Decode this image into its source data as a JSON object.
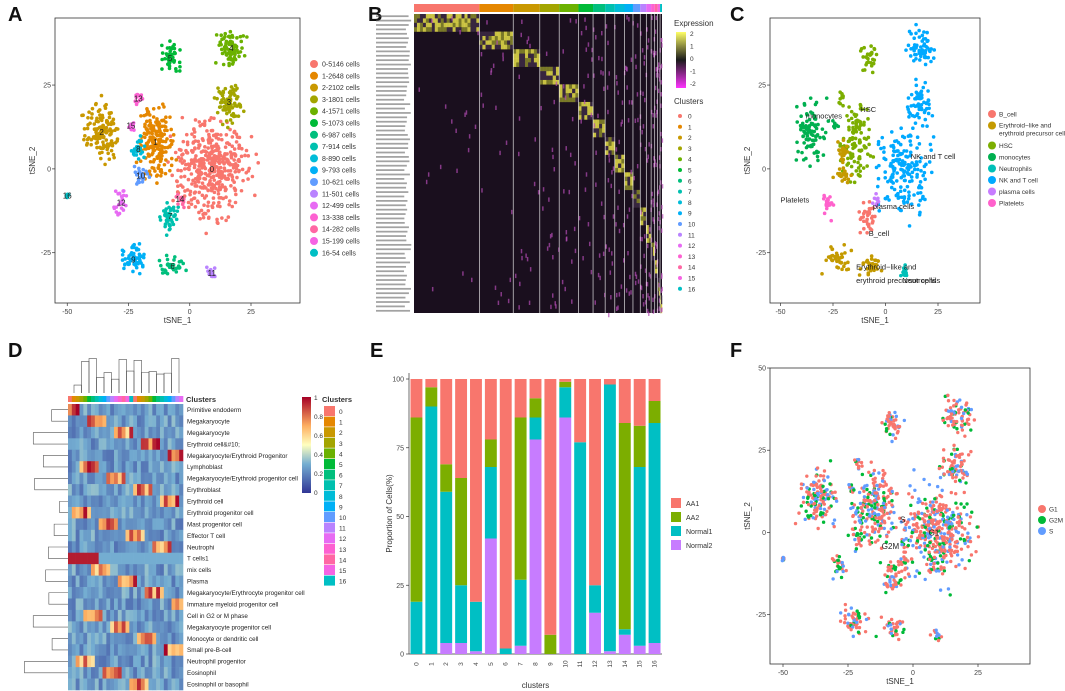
{
  "panels": {
    "A": "A",
    "B": "B",
    "C": "C",
    "D": "D",
    "E": "E",
    "F": "F"
  },
  "colors": [
    "#f8766d",
    "#e58700",
    "#c99800",
    "#a3a500",
    "#6bb100",
    "#00ba38",
    "#00bf7d",
    "#00c0af",
    "#00bcd8",
    "#00b0f6",
    "#619cff",
    "#b983ff",
    "#e76bf3",
    "#fd61d1",
    "#ff67a4",
    "#f564e3",
    "#00bfc4"
  ],
  "chart_data": [
    {
      "id": "A",
      "type": "scatter",
      "title": "",
      "xlabel": "tSNE_1",
      "ylabel": "tSNE_2",
      "xlim": [
        -55,
        45
      ],
      "ylim": [
        -40,
        45
      ],
      "xticks": [
        -50,
        -25,
        0,
        25
      ],
      "yticks": [
        -25,
        0,
        25
      ],
      "legend_position": "right",
      "clusters": [
        {
          "label": "0",
          "legend": "0-5146  cells",
          "center": [
            9,
            0
          ],
          "spread": [
            14,
            14
          ]
        },
        {
          "label": "1",
          "legend": "1-2648  cells",
          "center": [
            -14,
            8
          ],
          "spread": [
            7,
            12
          ]
        },
        {
          "label": "2",
          "legend": "2-2102  cells",
          "center": [
            -36,
            11
          ],
          "spread": [
            7,
            9
          ]
        },
        {
          "label": "3",
          "legend": "3-1801  cells",
          "center": [
            16,
            20
          ],
          "spread": [
            6,
            6
          ]
        },
        {
          "label": "4",
          "legend": "4-1571  cells",
          "center": [
            17,
            36
          ],
          "spread": [
            6,
            6
          ]
        },
        {
          "label": "5",
          "legend": "5-1073  cells",
          "center": [
            -8,
            33
          ],
          "spread": [
            4,
            5
          ]
        },
        {
          "label": "6",
          "legend": "6-987  cells",
          "center": [
            -7,
            -29
          ],
          "spread": [
            5,
            3
          ]
        },
        {
          "label": "7",
          "legend": "7-914  cells",
          "center": [
            -8,
            -14
          ],
          "spread": [
            4,
            5
          ]
        },
        {
          "label": "8",
          "legend": "8-890  cells",
          "center": [
            -21,
            6
          ],
          "spread": [
            3,
            4
          ]
        },
        {
          "label": "9",
          "legend": "9-793  cells",
          "center": [
            -23,
            -27
          ],
          "spread": [
            6,
            4
          ]
        },
        {
          "label": "10",
          "legend": "10-621  cells",
          "center": [
            -20,
            -2
          ],
          "spread": [
            4,
            3
          ]
        },
        {
          "label": "11",
          "legend": "11-501  cells",
          "center": [
            9,
            -31
          ],
          "spread": [
            2,
            2
          ]
        },
        {
          "label": "12",
          "legend": "12-499  cells",
          "center": [
            -28,
            -10
          ],
          "spread": [
            3,
            4
          ]
        },
        {
          "label": "13",
          "legend": "13-338  cells",
          "center": [
            -21,
            21
          ],
          "spread": [
            2,
            2
          ]
        },
        {
          "label": "14",
          "legend": "14-282  cells",
          "center": [
            -4,
            -9
          ],
          "spread": [
            2,
            2
          ]
        },
        {
          "label": "15",
          "legend": "15-199  cells",
          "center": [
            -24,
            13
          ],
          "spread": [
            1.5,
            1.5
          ]
        },
        {
          "label": "16",
          "legend": "16-54  cells",
          "center": [
            -50,
            -8
          ],
          "spread": [
            0.6,
            0.6
          ]
        }
      ]
    },
    {
      "id": "B",
      "type": "heatmap",
      "title": "",
      "legend_title": "Expression",
      "colorbar_ticks": [
        "2",
        "1",
        "0",
        "-1",
        "-2"
      ],
      "clusters_title": "Clusters",
      "clusters": [
        "0",
        "1",
        "2",
        "3",
        "4",
        "5",
        "6",
        "7",
        "8",
        "9",
        "10",
        "11",
        "12",
        "13",
        "14",
        "15",
        "16"
      ]
    },
    {
      "id": "C",
      "type": "scatter",
      "title": "",
      "xlabel": "tSNE_1",
      "ylabel": "tSNE_2",
      "xlim": [
        -55,
        45
      ],
      "ylim": [
        -40,
        45
      ],
      "xticks": [
        -50,
        -25,
        0,
        25
      ],
      "yticks": [
        -25,
        0,
        25
      ],
      "legend_position": "right",
      "legend": [
        "B_cell",
        "Erythroid−like and erythroid precursor cells",
        "HSC",
        "monocytes",
        "Neutrophils",
        "NK and T cell",
        "plasma cells",
        "Platelets"
      ],
      "annotations": [
        "monocytes",
        "HSC",
        "NK and T cell",
        "Platelets",
        "plasma cells",
        "B_cell",
        "Erythroid−like and",
        "erythroid precursor cells",
        "Neutrophils"
      ]
    },
    {
      "id": "D",
      "type": "heatmap",
      "title": "",
      "header_label": "Clusters",
      "rows": [
        "Primitive endoderm",
        "Megakaryocyte",
        "Megakaryocyte",
        "Erythroid cell&#10;",
        "Megakaryocyte/Erythroid Progenitor",
        "Lymphoblast",
        "Megakaryocyte/Erythroid progenitor cell",
        "Erythroblast",
        "Erythroid cell",
        "Erythroid progenitor cell",
        "Mast progenitor cell",
        "Effector T cell",
        "Neutrophi",
        "T cells1",
        "mix cells",
        "Plasma",
        "Megakaryocyte/Erythrocyte progenitor cell",
        "Immature myeloid progenitor cell",
        "Cell in G2 or M phase",
        "Megakaryocyte progenitor cell",
        "Monocyte or dendritic cell",
        "Small pre-B-cell",
        "Neutrophil progenitor",
        "Eosinophil",
        "Eosinophil or basophil"
      ],
      "colorbar_ticks": [
        "1",
        "0.8",
        "0.6",
        "0.4",
        "0.2",
        "0"
      ],
      "clusters_title": "Clusters",
      "clusters": [
        "0",
        "1",
        "2",
        "3",
        "4",
        "5",
        "6",
        "7",
        "8",
        "9",
        "10",
        "11",
        "12",
        "13",
        "14",
        "15",
        "16"
      ]
    },
    {
      "id": "E",
      "type": "bar",
      "stacked": true,
      "title": "",
      "xlabel": "clusters",
      "ylabel": "Proportion of Cells(%)",
      "ylim": [
        0,
        100
      ],
      "yticks": [
        0,
        25,
        50,
        75,
        100
      ],
      "categories": [
        "0",
        "1",
        "2",
        "3",
        "4",
        "5",
        "6",
        "7",
        "8",
        "9",
        "10",
        "11",
        "12",
        "13",
        "14",
        "15",
        "16"
      ],
      "series": [
        {
          "name": "Normal2",
          "color": "#c77cff",
          "values": [
            0,
            0,
            4,
            4,
            1,
            42,
            0,
            3,
            78,
            0,
            86,
            0,
            15,
            1,
            7,
            3,
            4
          ]
        },
        {
          "name": "Normal1",
          "color": "#00bfc4",
          "values": [
            19,
            90,
            55,
            21,
            18,
            26,
            2,
            24,
            8,
            0,
            11,
            77,
            10,
            97,
            2,
            65,
            80
          ]
        },
        {
          "name": "AA2",
          "color": "#7cae00",
          "values": [
            67,
            7,
            10,
            39,
            0,
            10,
            0,
            59,
            7,
            7,
            2,
            0,
            0,
            0,
            75,
            15,
            8
          ]
        },
        {
          "name": "AA1",
          "color": "#f8766d",
          "values": [
            14,
            3,
            31,
            36,
            81,
            22,
            98,
            14,
            7,
            93,
            1,
            23,
            75,
            2,
            16,
            17,
            8
          ]
        }
      ],
      "legend_order": [
        "AA1",
        "AA2",
        "Normal1",
        "Normal2"
      ]
    },
    {
      "id": "F",
      "type": "scatter",
      "title": "",
      "xlabel": "tSNE_1",
      "ylabel": "tSNE_2",
      "xlim": [
        -55,
        45
      ],
      "ylim": [
        -40,
        50
      ],
      "xticks": [
        -50,
        -25,
        0,
        25
      ],
      "yticks": [
        -25,
        0,
        25,
        50
      ],
      "legend_position": "right",
      "legend": [
        "G1",
        "G2M",
        "S"
      ],
      "legend_colors": [
        "#f8766d",
        "#00ba38",
        "#619cff"
      ],
      "annotations": [
        "S",
        "G1",
        "G2M"
      ]
    }
  ]
}
